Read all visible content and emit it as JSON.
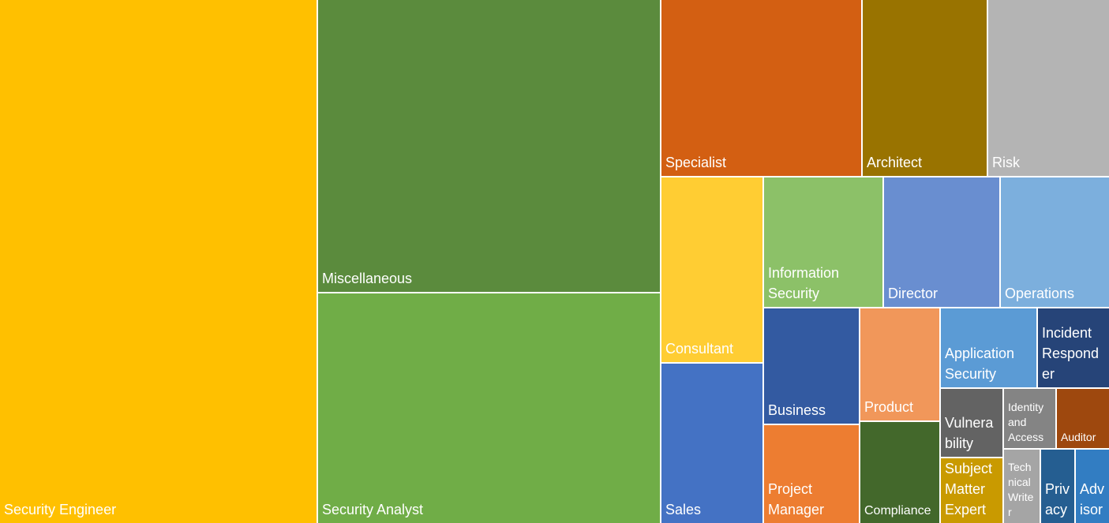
{
  "chart_data": {
    "type": "treemap",
    "title": "",
    "value_unit": "approximate share of total area (%)",
    "items": [
      {
        "label": "Security Engineer",
        "value": 28.5,
        "color": "#FFC000"
      },
      {
        "label": "Miscellaneous",
        "value": 17.2,
        "color": "#5B8B3D"
      },
      {
        "label": "Security Analyst",
        "value": 13.5,
        "color": "#70AD47"
      },
      {
        "label": "Specialist",
        "value": 6.1,
        "color": "#D35F12"
      },
      {
        "label": "Architect",
        "value": 3.8,
        "color": "#997300"
      },
      {
        "label": "Risk",
        "value": 3.7,
        "color": "#B4B4B4"
      },
      {
        "label": "Consultant",
        "value": 3.2,
        "color": "#FFCD33"
      },
      {
        "label": "Sales",
        "value": 2.8,
        "color": "#4472C4"
      },
      {
        "label": "Information Security",
        "value": 2.6,
        "color": "#8CC168"
      },
      {
        "label": "Director",
        "value": 2.6,
        "color": "#698ED0"
      },
      {
        "label": "Operations",
        "value": 2.4,
        "color": "#7CAFDD"
      },
      {
        "label": "Business",
        "value": 1.9,
        "color": "#335AA1"
      },
      {
        "label": "Project Manager",
        "value": 1.6,
        "color": "#ED7D31"
      },
      {
        "label": "Product",
        "value": 1.5,
        "color": "#F1975A"
      },
      {
        "label": "Compliance",
        "value": 1.4,
        "color": "#43682B"
      },
      {
        "label": "Application Security",
        "value": 1.3,
        "color": "#5B9BD5"
      },
      {
        "label": "Incident Responder",
        "value": 1.0,
        "color": "#264478"
      },
      {
        "label": "Vulnerability",
        "value": 0.7,
        "color": "#636363"
      },
      {
        "label": "Subject Matter Expert",
        "value": 0.7,
        "color": "#C99A00"
      },
      {
        "label": "Identity and Access",
        "value": 0.5,
        "color": "#848484"
      },
      {
        "label": "Auditor",
        "value": 0.5,
        "color": "#9E480E"
      },
      {
        "label": "Technical Writer",
        "value": 0.45,
        "color": "#A5A5A5"
      },
      {
        "label": "Privacy",
        "value": 0.42,
        "color": "#255E91"
      },
      {
        "label": "Advisor",
        "value": 0.42,
        "color": "#327DC2"
      }
    ]
  }
}
